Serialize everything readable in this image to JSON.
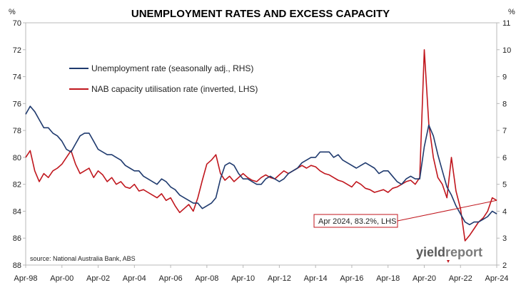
{
  "chart_data": {
    "type": "line",
    "title": "UNEMPLOYMENT RATES AND EXCESS CAPACITY",
    "left_axis": {
      "unit": "%",
      "min": 70,
      "max": 88,
      "inverted": true,
      "ticks": [
        "70",
        "72",
        "74",
        "76",
        "78",
        "80",
        "82",
        "84",
        "86",
        "88"
      ]
    },
    "right_axis": {
      "unit": "%",
      "min": 2,
      "max": 11,
      "ticks": [
        "2",
        "3",
        "4",
        "5",
        "6",
        "7",
        "8",
        "9",
        "10",
        "11"
      ]
    },
    "x_axis": {
      "start": 1998.25,
      "end": 2024.25,
      "ticks": [
        "Apr-98",
        "Apr-00",
        "Apr-02",
        "Apr-04",
        "Apr-06",
        "Apr-08",
        "Apr-10",
        "Apr-12",
        "Apr-14",
        "Apr-16",
        "Apr-18",
        "Apr-20",
        "Apr-22",
        "Apr-24"
      ]
    },
    "grid": false,
    "legend_position": "top-left",
    "source": "source: National Australia Bank, ABS",
    "annotation": "Apr 2024, 83.2%, LHS",
    "series": [
      {
        "name": "Unemployment rate (seasonally adj., RHS)",
        "axis": "right",
        "color": "#1f3a6e",
        "points": [
          [
            1998.25,
            7.6
          ],
          [
            1998.5,
            7.9
          ],
          [
            1998.75,
            7.7
          ],
          [
            1999.0,
            7.4
          ],
          [
            1999.25,
            7.1
          ],
          [
            1999.5,
            7.1
          ],
          [
            1999.75,
            6.9
          ],
          [
            2000.0,
            6.8
          ],
          [
            2000.25,
            6.6
          ],
          [
            2000.5,
            6.3
          ],
          [
            2000.75,
            6.2
          ],
          [
            2001.0,
            6.5
          ],
          [
            2001.25,
            6.8
          ],
          [
            2001.5,
            6.9
          ],
          [
            2001.75,
            6.9
          ],
          [
            2002.0,
            6.6
          ],
          [
            2002.25,
            6.3
          ],
          [
            2002.5,
            6.2
          ],
          [
            2002.75,
            6.1
          ],
          [
            2003.0,
            6.1
          ],
          [
            2003.25,
            6.0
          ],
          [
            2003.5,
            5.9
          ],
          [
            2003.75,
            5.7
          ],
          [
            2004.0,
            5.6
          ],
          [
            2004.25,
            5.5
          ],
          [
            2004.5,
            5.5
          ],
          [
            2004.75,
            5.3
          ],
          [
            2005.0,
            5.2
          ],
          [
            2005.25,
            5.1
          ],
          [
            2005.5,
            5.0
          ],
          [
            2005.75,
            5.2
          ],
          [
            2006.0,
            5.1
          ],
          [
            2006.25,
            4.9
          ],
          [
            2006.5,
            4.8
          ],
          [
            2006.75,
            4.6
          ],
          [
            2007.0,
            4.5
          ],
          [
            2007.25,
            4.4
          ],
          [
            2007.5,
            4.3
          ],
          [
            2007.75,
            4.3
          ],
          [
            2008.0,
            4.1
          ],
          [
            2008.25,
            4.2
          ],
          [
            2008.5,
            4.3
          ],
          [
            2008.75,
            4.5
          ],
          [
            2009.0,
            5.2
          ],
          [
            2009.25,
            5.7
          ],
          [
            2009.5,
            5.8
          ],
          [
            2009.75,
            5.7
          ],
          [
            2010.0,
            5.4
          ],
          [
            2010.25,
            5.2
          ],
          [
            2010.5,
            5.2
          ],
          [
            2010.75,
            5.1
          ],
          [
            2011.0,
            5.0
          ],
          [
            2011.25,
            5.0
          ],
          [
            2011.5,
            5.2
          ],
          [
            2011.75,
            5.3
          ],
          [
            2012.0,
            5.2
          ],
          [
            2012.25,
            5.1
          ],
          [
            2012.5,
            5.2
          ],
          [
            2012.75,
            5.4
          ],
          [
            2013.0,
            5.5
          ],
          [
            2013.25,
            5.6
          ],
          [
            2013.5,
            5.8
          ],
          [
            2013.75,
            5.9
          ],
          [
            2014.0,
            6.0
          ],
          [
            2014.25,
            6.0
          ],
          [
            2014.5,
            6.2
          ],
          [
            2014.75,
            6.2
          ],
          [
            2015.0,
            6.2
          ],
          [
            2015.25,
            6.0
          ],
          [
            2015.5,
            6.1
          ],
          [
            2015.75,
            5.9
          ],
          [
            2016.0,
            5.8
          ],
          [
            2016.25,
            5.7
          ],
          [
            2016.5,
            5.6
          ],
          [
            2016.75,
            5.7
          ],
          [
            2017.0,
            5.8
          ],
          [
            2017.25,
            5.7
          ],
          [
            2017.5,
            5.6
          ],
          [
            2017.75,
            5.4
          ],
          [
            2018.0,
            5.5
          ],
          [
            2018.25,
            5.5
          ],
          [
            2018.5,
            5.3
          ],
          [
            2018.75,
            5.1
          ],
          [
            2019.0,
            5.0
          ],
          [
            2019.25,
            5.2
          ],
          [
            2019.5,
            5.3
          ],
          [
            2019.75,
            5.2
          ],
          [
            2020.0,
            5.2
          ],
          [
            2020.25,
            6.4
          ],
          [
            2020.5,
            7.2
          ],
          [
            2020.75,
            6.8
          ],
          [
            2021.0,
            6.1
          ],
          [
            2021.25,
            5.5
          ],
          [
            2021.5,
            4.9
          ],
          [
            2021.75,
            4.6
          ],
          [
            2022.0,
            4.2
          ],
          [
            2022.25,
            3.9
          ],
          [
            2022.5,
            3.6
          ],
          [
            2022.75,
            3.5
          ],
          [
            2023.0,
            3.6
          ],
          [
            2023.25,
            3.6
          ],
          [
            2023.5,
            3.7
          ],
          [
            2023.75,
            3.8
          ],
          [
            2024.0,
            4.0
          ],
          [
            2024.25,
            3.9
          ]
        ]
      },
      {
        "name": "NAB capacity utilisation rate (inverted, LHS)",
        "axis": "left",
        "color": "#c0161d",
        "points": [
          [
            1998.25,
            80.0
          ],
          [
            1998.5,
            79.5
          ],
          [
            1998.75,
            81.0
          ],
          [
            1999.0,
            81.8
          ],
          [
            1999.25,
            81.2
          ],
          [
            1999.5,
            81.5
          ],
          [
            1999.75,
            81.0
          ],
          [
            2000.0,
            80.8
          ],
          [
            2000.25,
            80.5
          ],
          [
            2000.5,
            80.0
          ],
          [
            2000.75,
            79.5
          ],
          [
            2001.0,
            80.5
          ],
          [
            2001.25,
            81.2
          ],
          [
            2001.5,
            81.0
          ],
          [
            2001.75,
            80.8
          ],
          [
            2002.0,
            81.5
          ],
          [
            2002.25,
            81.0
          ],
          [
            2002.5,
            81.3
          ],
          [
            2002.75,
            81.8
          ],
          [
            2003.0,
            81.5
          ],
          [
            2003.25,
            82.0
          ],
          [
            2003.5,
            81.8
          ],
          [
            2003.75,
            82.2
          ],
          [
            2004.0,
            82.3
          ],
          [
            2004.25,
            82.0
          ],
          [
            2004.5,
            82.5
          ],
          [
            2004.75,
            82.4
          ],
          [
            2005.0,
            82.6
          ],
          [
            2005.25,
            82.8
          ],
          [
            2005.5,
            83.0
          ],
          [
            2005.75,
            82.7
          ],
          [
            2006.0,
            83.2
          ],
          [
            2006.25,
            83.0
          ],
          [
            2006.5,
            83.6
          ],
          [
            2006.75,
            84.1
          ],
          [
            2007.0,
            83.8
          ],
          [
            2007.25,
            83.5
          ],
          [
            2007.5,
            84.0
          ],
          [
            2007.75,
            83.0
          ],
          [
            2008.0,
            81.7
          ],
          [
            2008.25,
            80.5
          ],
          [
            2008.5,
            80.2
          ],
          [
            2008.75,
            79.8
          ],
          [
            2009.0,
            81.2
          ],
          [
            2009.25,
            81.7
          ],
          [
            2009.5,
            81.4
          ],
          [
            2009.75,
            81.8
          ],
          [
            2010.0,
            81.5
          ],
          [
            2010.25,
            81.2
          ],
          [
            2010.5,
            81.5
          ],
          [
            2010.75,
            81.7
          ],
          [
            2011.0,
            81.8
          ],
          [
            2011.25,
            81.5
          ],
          [
            2011.5,
            81.3
          ],
          [
            2011.75,
            81.5
          ],
          [
            2012.0,
            81.6
          ],
          [
            2012.25,
            81.3
          ],
          [
            2012.5,
            81.0
          ],
          [
            2012.75,
            81.2
          ],
          [
            2013.0,
            81.0
          ],
          [
            2013.25,
            80.8
          ],
          [
            2013.5,
            80.6
          ],
          [
            2013.75,
            80.8
          ],
          [
            2014.0,
            80.6
          ],
          [
            2014.25,
            80.7
          ],
          [
            2014.5,
            81.0
          ],
          [
            2014.75,
            81.2
          ],
          [
            2015.0,
            81.3
          ],
          [
            2015.25,
            81.5
          ],
          [
            2015.5,
            81.7
          ],
          [
            2015.75,
            81.8
          ],
          [
            2016.0,
            82.0
          ],
          [
            2016.25,
            82.2
          ],
          [
            2016.5,
            81.8
          ],
          [
            2016.75,
            82.0
          ],
          [
            2017.0,
            82.3
          ],
          [
            2017.25,
            82.4
          ],
          [
            2017.5,
            82.6
          ],
          [
            2017.75,
            82.5
          ],
          [
            2018.0,
            82.4
          ],
          [
            2018.25,
            82.6
          ],
          [
            2018.5,
            82.3
          ],
          [
            2018.75,
            82.2
          ],
          [
            2019.0,
            82.0
          ],
          [
            2019.25,
            81.8
          ],
          [
            2019.5,
            81.7
          ],
          [
            2019.75,
            82.0
          ],
          [
            2020.0,
            81.5
          ],
          [
            2020.25,
            72.0
          ],
          [
            2020.5,
            77.5
          ],
          [
            2020.75,
            80.0
          ],
          [
            2021.0,
            81.5
          ],
          [
            2021.25,
            82.0
          ],
          [
            2021.5,
            83.0
          ],
          [
            2021.75,
            80.0
          ],
          [
            2022.0,
            82.5
          ],
          [
            2022.25,
            83.8
          ],
          [
            2022.5,
            86.2
          ],
          [
            2022.75,
            85.8
          ],
          [
            2023.0,
            85.3
          ],
          [
            2023.25,
            84.8
          ],
          [
            2023.5,
            84.5
          ],
          [
            2023.75,
            84.0
          ],
          [
            2024.0,
            83.0
          ],
          [
            2024.25,
            83.2
          ]
        ]
      }
    ]
  }
}
